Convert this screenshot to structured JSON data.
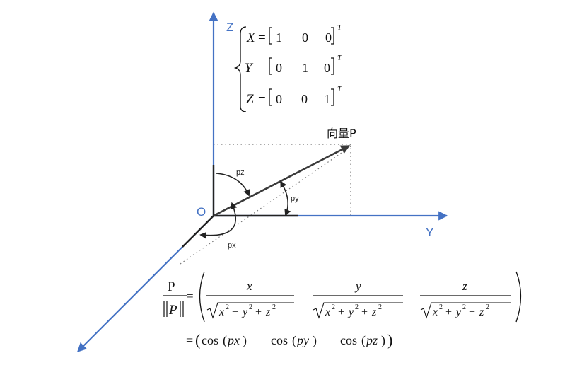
{
  "labels": {
    "z_axis": "Z",
    "y_axis": "Y",
    "origin": "O",
    "vector": "向量P",
    "angle_pz": "pz",
    "angle_py": "py",
    "angle_px": "px"
  },
  "basis": {
    "x": {
      "name": "X",
      "c1": "1",
      "c2": "0",
      "c3": "0",
      "sup": "T"
    },
    "y": {
      "name": "Y",
      "c1": "0",
      "c2": "1",
      "c3": "0",
      "sup": "T"
    },
    "z": {
      "name": "Z",
      "c1": "0",
      "c2": "0",
      "c3": "1",
      "sup": "T"
    }
  },
  "formula": {
    "lhs_num": "P",
    "lhs_den": "P",
    "eq": "=",
    "num_x": "x",
    "num_y": "y",
    "num_z": "z",
    "cos": "cos",
    "arg_x": "px",
    "arg_y": "py",
    "arg_z": "pz"
  },
  "colors": {
    "axis": "#4472c4",
    "vector": "#3a3a3a"
  }
}
